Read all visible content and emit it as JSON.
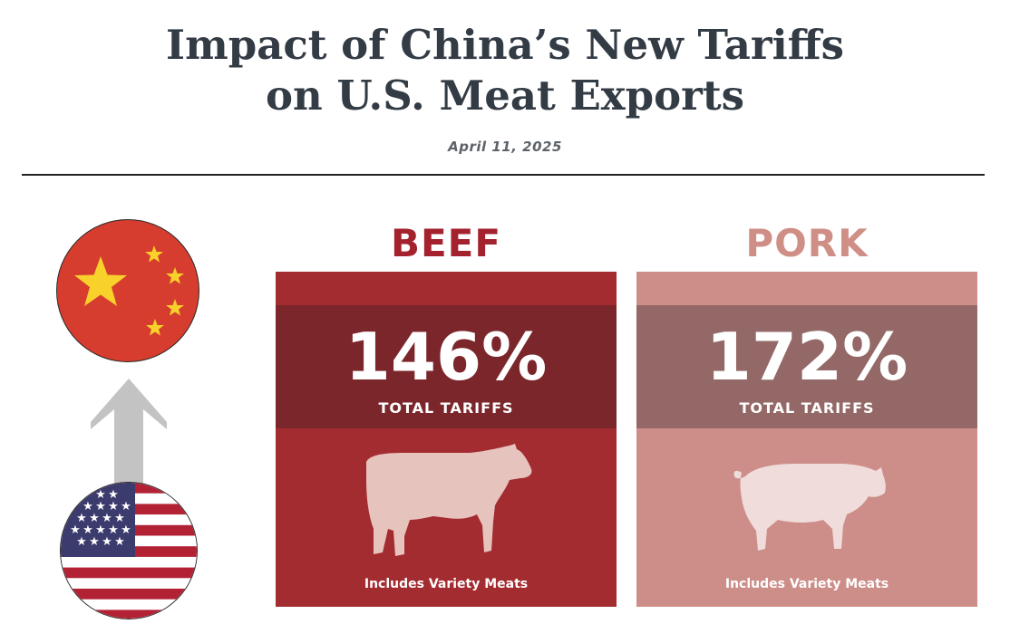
{
  "header": {
    "title_line1": "Impact of China’s New Tariffs",
    "title_line2": "on U.S. Meat Exports",
    "date": "April 11, 2025"
  },
  "colors": {
    "beef_title": "#a3222e",
    "beef_card": "#a32c31",
    "beef_band": "#7b262a",
    "pork_title": "#cf8f86",
    "pork_card": "#cd8e89",
    "pork_band": "#936866",
    "china_red": "#d63d2e",
    "china_star": "#f8d12a",
    "arrow_gray": "#c3c3c3"
  },
  "panels": [
    {
      "label": "BEEF",
      "percent": "146%",
      "caption": "TOTAL TARIFFS",
      "note": "Includes Variety Meats",
      "icon": "cow-icon"
    },
    {
      "label": "PORK",
      "percent": "172%",
      "caption": "TOTAL TARIFFS",
      "note": "Includes Variety Meats",
      "icon": "pig-icon"
    }
  ],
  "flags": {
    "top": "china-flag-icon",
    "bottom": "usa-flag-icon",
    "connector": "arrow-up-icon"
  }
}
